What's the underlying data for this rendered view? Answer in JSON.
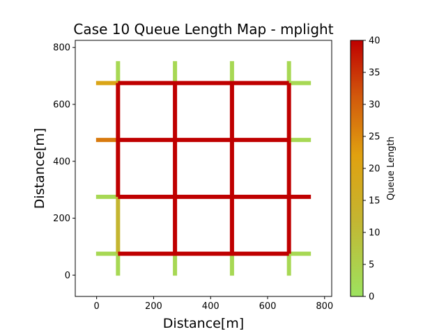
{
  "chart_data": {
    "type": "line",
    "title": "Case 10 Queue Length Map - mplight",
    "xlabel": "Distance[m]",
    "ylabel": "Distance[m]",
    "xlim": [
      -75,
      825
    ],
    "ylim": [
      -75,
      825
    ],
    "xticks": [
      0,
      200,
      400,
      600,
      800
    ],
    "yticks": [
      0,
      200,
      400,
      600,
      800
    ],
    "grid": false,
    "colorbar": {
      "label": "Queue Length",
      "min": 0,
      "max": 40,
      "ticks": [
        0,
        5,
        10,
        15,
        20,
        25,
        30,
        35,
        40
      ],
      "colors": [
        "#9de35f",
        "#c4b531",
        "#e0a110",
        "#d2590c",
        "#bf0000"
      ]
    },
    "segments": [
      {
        "road": "row-75-left-approach",
        "x": [
          -2,
          75
        ],
        "y": [
          75,
          75
        ],
        "q": 3
      },
      {
        "road": "row-75",
        "x": [
          75,
          675
        ],
        "y": [
          75,
          75
        ],
        "q": 40
      },
      {
        "road": "row-75-right-exit",
        "x": [
          675,
          752
        ],
        "y": [
          75,
          75
        ],
        "q": 3
      },
      {
        "road": "row-275-left-approach",
        "x": [
          -2,
          75
        ],
        "y": [
          275,
          275
        ],
        "q": 3
      },
      {
        "road": "row-275",
        "x": [
          75,
          752
        ],
        "y": [
          275,
          275
        ],
        "q": 40
      },
      {
        "road": "row-475-left-approach",
        "x": [
          -2,
          75
        ],
        "y": [
          475,
          475
        ],
        "q": 27
      },
      {
        "road": "row-475",
        "x": [
          75,
          675
        ],
        "y": [
          475,
          475
        ],
        "q": 40
      },
      {
        "road": "row-475-right-exit",
        "x": [
          675,
          752
        ],
        "y": [
          475,
          475
        ],
        "q": 3
      },
      {
        "road": "row-675-left-approach",
        "x": [
          -2,
          75
        ],
        "y": [
          675,
          675
        ],
        "q": 20
      },
      {
        "road": "row-675",
        "x": [
          75,
          675
        ],
        "y": [
          675,
          675
        ],
        "q": 40
      },
      {
        "road": "row-675-right-exit",
        "x": [
          675,
          752
        ],
        "y": [
          675,
          675
        ],
        "q": 3
      },
      {
        "road": "col-75-bottom",
        "x": [
          75,
          75
        ],
        "y": [
          -2,
          75
        ],
        "q": 3
      },
      {
        "road": "col-75-lower",
        "x": [
          75,
          75
        ],
        "y": [
          75,
          275
        ],
        "q": 12
      },
      {
        "road": "col-75",
        "x": [
          75,
          75
        ],
        "y": [
          275,
          675
        ],
        "q": 40
      },
      {
        "road": "col-75-top",
        "x": [
          75,
          75
        ],
        "y": [
          675,
          752
        ],
        "q": 3
      },
      {
        "road": "col-275-bottom",
        "x": [
          275,
          275
        ],
        "y": [
          -2,
          75
        ],
        "q": 3
      },
      {
        "road": "col-275",
        "x": [
          275,
          275
        ],
        "y": [
          75,
          675
        ],
        "q": 40
      },
      {
        "road": "col-275-top",
        "x": [
          275,
          275
        ],
        "y": [
          675,
          752
        ],
        "q": 3
      },
      {
        "road": "col-475-bottom",
        "x": [
          475,
          475
        ],
        "y": [
          -2,
          75
        ],
        "q": 3
      },
      {
        "road": "col-475",
        "x": [
          475,
          475
        ],
        "y": [
          75,
          675
        ],
        "q": 40
      },
      {
        "road": "col-475-top",
        "x": [
          475,
          475
        ],
        "y": [
          675,
          752
        ],
        "q": 3
      },
      {
        "road": "col-675-bottom",
        "x": [
          675,
          675
        ],
        "y": [
          -2,
          75
        ],
        "q": 3
      },
      {
        "road": "col-675",
        "x": [
          675,
          675
        ],
        "y": [
          75,
          675
        ],
        "q": 40
      },
      {
        "road": "col-675-top",
        "x": [
          675,
          675
        ],
        "y": [
          675,
          752
        ],
        "q": 3
      }
    ]
  }
}
